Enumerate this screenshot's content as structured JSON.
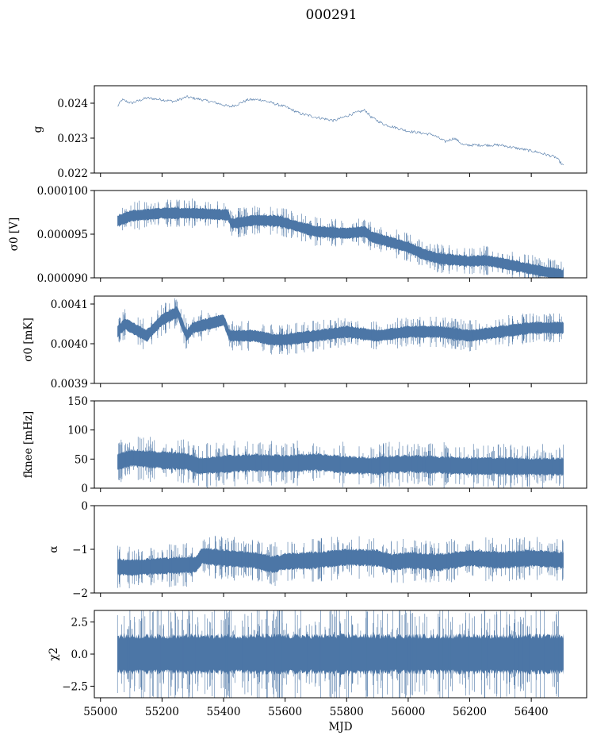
{
  "title": "000291",
  "series_color": "#4c76a6",
  "chart_data": {
    "type": "line",
    "title": "000291",
    "xlabel": "MJD",
    "xlim": [
      54980,
      56580
    ],
    "x_ticks": [
      55000,
      55200,
      55400,
      55600,
      55800,
      56000,
      56200,
      56400
    ],
    "x_tick_labels": [
      "55000",
      "55200",
      "55400",
      "55600",
      "55800",
      "56000",
      "56200",
      "56400"
    ],
    "grid": false,
    "legend": "none",
    "panels": [
      {
        "id": "g",
        "ylabel": "g",
        "ylim": [
          0.022,
          0.0245
        ],
        "y_ticks": [
          0.022,
          0.023,
          0.024
        ],
        "y_tick_labels": [
          "0.022",
          "0.023",
          "0.024"
        ],
        "style": "line",
        "noise": 4e-05,
        "x": [
          55055,
          55070,
          55100,
          55150,
          55200,
          55240,
          55280,
          55330,
          55380,
          55420,
          55440,
          55480,
          55520,
          55560,
          55600,
          55650,
          55700,
          55760,
          55820,
          55860,
          55880,
          55920,
          56000,
          56080,
          56120,
          56150,
          56180,
          56240,
          56300,
          56360,
          56420,
          56480,
          56505
        ],
        "y": [
          0.0239,
          0.0241,
          0.024,
          0.02415,
          0.0241,
          0.02405,
          0.02418,
          0.0241,
          0.024,
          0.0239,
          0.02395,
          0.0241,
          0.0241,
          0.024,
          0.0239,
          0.0237,
          0.0236,
          0.0235,
          0.0237,
          0.0238,
          0.0236,
          0.0234,
          0.0232,
          0.0231,
          0.0229,
          0.023,
          0.0228,
          0.0228,
          0.0228,
          0.0227,
          0.0226,
          0.02245,
          0.0222
        ]
      },
      {
        "id": "sigma0-volts",
        "ylabel": "σ0 [V]",
        "ylim": [
          9e-05,
          0.0001
        ],
        "y_ticks": [
          9e-05,
          9.5e-05,
          0.0001
        ],
        "y_tick_labels": [
          "0.000090",
          "0.000095",
          "0.000100"
        ],
        "style": "band",
        "width": 6e-07,
        "x": [
          55055,
          55100,
          55200,
          55300,
          55415,
          55425,
          55500,
          55580,
          55620,
          55700,
          55800,
          55860,
          55880,
          55950,
          56000,
          56050,
          56100,
          56200,
          56250,
          56300,
          56400,
          56505
        ],
        "y": [
          9.65e-05,
          9.71e-05,
          9.74e-05,
          9.74e-05,
          9.72e-05,
          9.62e-05,
          9.66e-05,
          9.65e-05,
          9.61e-05,
          9.53e-05,
          9.51e-05,
          9.53e-05,
          9.47e-05,
          9.4e-05,
          9.35e-05,
          9.27e-05,
          9.22e-05,
          9.19e-05,
          9.2e-05,
          9.17e-05,
          9.1e-05,
          9.03e-05
        ]
      },
      {
        "id": "sigma0-mk",
        "ylabel": "σ0 [mK]",
        "ylim": [
          0.0039,
          0.00412
        ],
        "y_ticks": [
          0.0039,
          0.004,
          0.0041
        ],
        "y_tick_labels": [
          "0.0039",
          "0.0040",
          "0.0041"
        ],
        "style": "band",
        "width": 1.4e-05,
        "x": [
          55055,
          55080,
          55150,
          55200,
          55250,
          55280,
          55300,
          55350,
          55400,
          55420,
          55430,
          55500,
          55560,
          55600,
          55700,
          55800,
          55900,
          56000,
          56100,
          56200,
          56300,
          56400,
          56505
        ],
        "y": [
          0.00403,
          0.00405,
          0.00402,
          0.00406,
          0.00408,
          0.00402,
          0.00404,
          0.00405,
          0.00406,
          0.00402,
          0.00402,
          0.00402,
          0.00401,
          0.00401,
          0.00402,
          0.00403,
          0.00402,
          0.00403,
          0.00403,
          0.00402,
          0.00403,
          0.00404,
          0.00404
        ]
      },
      {
        "id": "fknee",
        "ylabel": "fknee [mHz]",
        "ylim": [
          0,
          150
        ],
        "y_ticks": [
          0,
          50,
          100,
          150
        ],
        "y_tick_labels": [
          "0",
          "50",
          "100",
          "150"
        ],
        "style": "band",
        "width": 14,
        "x": [
          55055,
          55100,
          55200,
          55280,
          55320,
          55420,
          55500,
          55600,
          55700,
          55800,
          55905,
          55910,
          56000,
          56100,
          56200,
          56300,
          56400,
          56505
        ],
        "y": [
          45,
          52,
          48,
          46,
          38,
          42,
          44,
          42,
          45,
          40,
          38,
          40,
          42,
          40,
          38,
          38,
          37,
          37
        ]
      },
      {
        "id": "alpha",
        "ylabel": "α",
        "ylim": [
          -2,
          0
        ],
        "y_ticks": [
          -2,
          -1,
          0
        ],
        "y_tick_labels": [
          "−2",
          "−1",
          "0"
        ],
        "style": "band",
        "width": 0.18,
        "x": [
          55055,
          55100,
          55200,
          55310,
          55330,
          55400,
          55500,
          55560,
          55600,
          55700,
          55800,
          55900,
          55950,
          56000,
          56100,
          56200,
          56300,
          56400,
          56505
        ],
        "y": [
          -1.4,
          -1.42,
          -1.38,
          -1.35,
          -1.15,
          -1.2,
          -1.25,
          -1.35,
          -1.28,
          -1.25,
          -1.18,
          -1.2,
          -1.3,
          -1.25,
          -1.3,
          -1.2,
          -1.25,
          -1.2,
          -1.25
        ]
      },
      {
        "id": "chi2",
        "ylabel": "χ2",
        "ylim": [
          -3.4,
          3.4
        ],
        "y_ticks": [
          -2.5,
          0,
          2.5
        ],
        "y_tick_labels": [
          "−2.5",
          "0.0",
          "2.5"
        ],
        "style": "band",
        "width": 1.4,
        "x": [
          55055,
          56505
        ],
        "y": [
          0,
          0
        ]
      }
    ]
  }
}
